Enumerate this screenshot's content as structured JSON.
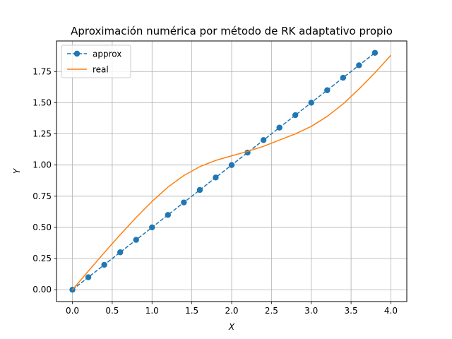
{
  "chart_data": {
    "type": "line",
    "title": "Aproximación numérica por método de RK adaptativo propio",
    "xlabel": "X",
    "ylabel": "Y",
    "xlim": [
      -0.2,
      4.2
    ],
    "ylim": [
      -0.095,
      1.995
    ],
    "grid": true,
    "legend_position": "top-left",
    "x_ticks": [
      {
        "value": 0.0,
        "label": "0.0"
      },
      {
        "value": 0.5,
        "label": "0.5"
      },
      {
        "value": 1.0,
        "label": "1.0"
      },
      {
        "value": 1.5,
        "label": "1.5"
      },
      {
        "value": 2.0,
        "label": "2.0"
      },
      {
        "value": 2.5,
        "label": "2.5"
      },
      {
        "value": 3.0,
        "label": "3.0"
      },
      {
        "value": 3.5,
        "label": "3.5"
      },
      {
        "value": 4.0,
        "label": "4.0"
      }
    ],
    "y_ticks": [
      {
        "value": 0.0,
        "label": "0.00"
      },
      {
        "value": 0.25,
        "label": "0.25"
      },
      {
        "value": 0.5,
        "label": "0.50"
      },
      {
        "value": 0.75,
        "label": "0.75"
      },
      {
        "value": 1.0,
        "label": "1.00"
      },
      {
        "value": 1.25,
        "label": "1.25"
      },
      {
        "value": 1.5,
        "label": "1.50"
      },
      {
        "value": 1.75,
        "label": "1.75"
      }
    ],
    "series": [
      {
        "name": "approx",
        "color": "#1f77b4",
        "style": "dashed-with-circle-markers",
        "x": [
          0.0,
          0.2,
          0.4,
          0.6,
          0.8,
          1.0,
          1.2,
          1.4,
          1.6,
          1.8,
          2.0,
          2.2,
          2.4,
          2.6,
          2.8,
          3.0,
          3.2,
          3.4,
          3.6,
          3.8
        ],
        "y": [
          0.0,
          0.1,
          0.2,
          0.3,
          0.4,
          0.5,
          0.6,
          0.7,
          0.8,
          0.9,
          1.0,
          1.1,
          1.2,
          1.3,
          1.4,
          1.5,
          1.6,
          1.7,
          1.8,
          1.9
        ]
      },
      {
        "name": "real",
        "color": "#ff7f0e",
        "style": "solid",
        "x": [
          0.0,
          0.2,
          0.4,
          0.6,
          0.8,
          1.0,
          1.2,
          1.4,
          1.6,
          1.8,
          2.0,
          2.2,
          2.4,
          2.6,
          2.8,
          3.0,
          3.2,
          3.4,
          3.6,
          3.8,
          4.0
        ],
        "y": [
          0.0,
          0.149,
          0.297,
          0.441,
          0.579,
          0.708,
          0.823,
          0.916,
          0.987,
          1.037,
          1.074,
          1.109,
          1.15,
          1.2,
          1.25,
          1.31,
          1.39,
          1.49,
          1.61,
          1.74,
          1.88
        ]
      }
    ]
  }
}
